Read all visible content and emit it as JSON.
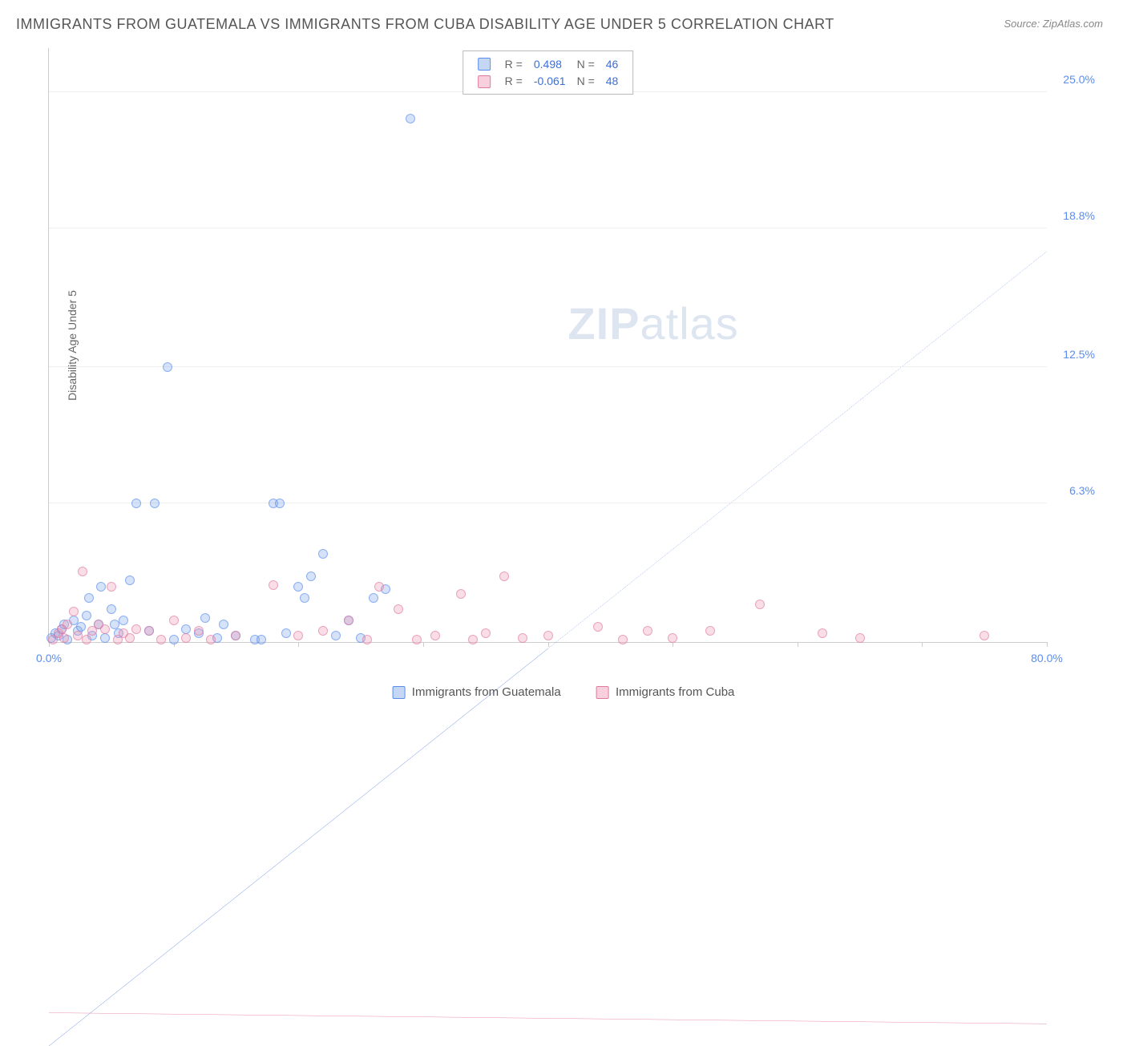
{
  "title": "IMMIGRANTS FROM GUATEMALA VS IMMIGRANTS FROM CUBA DISABILITY AGE UNDER 5 CORRELATION CHART",
  "source_label": "Source: ZipAtlas.com",
  "ylabel": "Disability Age Under 5",
  "watermark_bold": "ZIP",
  "watermark_light": "atlas",
  "chart": {
    "type": "scatter",
    "xlim": [
      0,
      80
    ],
    "ylim": [
      0,
      27
    ],
    "x_tick_positions": [
      0,
      10,
      20,
      30,
      40,
      50,
      60,
      70,
      80
    ],
    "y_gridlines": [
      6.3,
      12.5,
      18.8,
      25.0
    ],
    "x_axis_labels": [
      {
        "pos": 0,
        "text": "0.0%"
      },
      {
        "pos": 80,
        "text": "80.0%"
      }
    ],
    "y_axis_labels": [
      {
        "pos": 6.3,
        "text": "6.3%"
      },
      {
        "pos": 12.5,
        "text": "12.5%"
      },
      {
        "pos": 18.8,
        "text": "18.8%"
      },
      {
        "pos": 25.0,
        "text": "25.0%"
      }
    ],
    "background_color": "#ffffff",
    "grid_color": "#eeeeee",
    "axis_color": "#cccccc",
    "label_color": "#5b8def",
    "series": [
      {
        "name": "Immigrants from Guatemala",
        "color_fill": "rgba(124,165,230,0.45)",
        "color_stroke": "#5b8def",
        "trend_color": "#2a5bd7",
        "R": "0.498",
        "N": "46",
        "trend_line": {
          "x1": 0,
          "y1": 0,
          "x2": 80,
          "y2": 21.5
        },
        "trend_solid_until_x": 40,
        "points": [
          [
            0.2,
            0.2
          ],
          [
            0.5,
            0.4
          ],
          [
            0.8,
            0.3
          ],
          [
            1.0,
            0.6
          ],
          [
            1.2,
            0.8
          ],
          [
            1.5,
            0.1
          ],
          [
            2.0,
            1.0
          ],
          [
            2.3,
            0.5
          ],
          [
            2.6,
            0.7
          ],
          [
            3.0,
            1.2
          ],
          [
            3.2,
            2.0
          ],
          [
            3.5,
            0.3
          ],
          [
            4.0,
            0.8
          ],
          [
            4.2,
            2.5
          ],
          [
            4.5,
            0.2
          ],
          [
            5.0,
            1.5
          ],
          [
            5.3,
            0.8
          ],
          [
            5.6,
            0.4
          ],
          [
            6.0,
            1.0
          ],
          [
            6.5,
            2.8
          ],
          [
            7.0,
            6.3
          ],
          [
            8.5,
            6.3
          ],
          [
            9.5,
            12.5
          ],
          [
            10.0,
            0.1
          ],
          [
            11.0,
            0.6
          ],
          [
            12.0,
            0.4
          ],
          [
            13.5,
            0.2
          ],
          [
            15.0,
            0.3
          ],
          [
            16.5,
            0.1
          ],
          [
            18.0,
            6.3
          ],
          [
            18.5,
            6.3
          ],
          [
            19.0,
            0.4
          ],
          [
            20.0,
            2.5
          ],
          [
            20.5,
            2.0
          ],
          [
            21.0,
            3.0
          ],
          [
            22.0,
            4.0
          ],
          [
            23.0,
            0.3
          ],
          [
            25.0,
            0.2
          ],
          [
            27.0,
            2.4
          ],
          [
            29.0,
            23.8
          ],
          [
            12.5,
            1.1
          ],
          [
            14.0,
            0.8
          ],
          [
            17.0,
            0.1
          ],
          [
            24.0,
            1.0
          ],
          [
            26.0,
            2.0
          ],
          [
            8.0,
            0.5
          ]
        ]
      },
      {
        "name": "Immigrants from Cuba",
        "color_fill": "rgba(240,150,180,0.45)",
        "color_stroke": "#e07ba0",
        "trend_color": "#e06088",
        "R": "-0.061",
        "N": "48",
        "trend_line": {
          "x1": 0,
          "y1": 0.9,
          "x2": 80,
          "y2": 0.6
        },
        "trend_solid_until_x": 80,
        "points": [
          [
            0.3,
            0.1
          ],
          [
            0.8,
            0.4
          ],
          [
            1.0,
            0.6
          ],
          [
            1.2,
            0.2
          ],
          [
            1.5,
            0.8
          ],
          [
            2.0,
            1.4
          ],
          [
            2.3,
            0.3
          ],
          [
            2.7,
            3.2
          ],
          [
            3.0,
            0.1
          ],
          [
            3.5,
            0.5
          ],
          [
            4.0,
            0.8
          ],
          [
            4.5,
            0.6
          ],
          [
            5.0,
            2.5
          ],
          [
            5.5,
            0.1
          ],
          [
            6.0,
            0.4
          ],
          [
            6.5,
            0.2
          ],
          [
            7.0,
            0.6
          ],
          [
            8.0,
            0.5
          ],
          [
            9.0,
            0.1
          ],
          [
            10.0,
            1.0
          ],
          [
            11.0,
            0.2
          ],
          [
            12.0,
            0.5
          ],
          [
            13.0,
            0.1
          ],
          [
            15.0,
            0.3
          ],
          [
            18.0,
            2.6
          ],
          [
            20.0,
            0.3
          ],
          [
            22.0,
            0.5
          ],
          [
            24.0,
            1.0
          ],
          [
            25.5,
            0.1
          ],
          [
            26.5,
            2.5
          ],
          [
            28.0,
            1.5
          ],
          [
            29.5,
            0.1
          ],
          [
            31.0,
            0.3
          ],
          [
            33.0,
            2.2
          ],
          [
            34.0,
            0.1
          ],
          [
            35.0,
            0.4
          ],
          [
            36.5,
            3.0
          ],
          [
            38.0,
            0.2
          ],
          [
            40.0,
            0.3
          ],
          [
            44.0,
            0.7
          ],
          [
            46.0,
            0.1
          ],
          [
            48.0,
            0.5
          ],
          [
            50.0,
            0.2
          ],
          [
            53.0,
            0.5
          ],
          [
            57.0,
            1.7
          ],
          [
            62.0,
            0.4
          ],
          [
            65.0,
            0.2
          ],
          [
            75.0,
            0.3
          ]
        ]
      }
    ]
  },
  "legend_top": {
    "r_label": "R",
    "n_label": "N",
    "eq": "="
  },
  "legend_bottom": {
    "series_a": "Immigrants from Guatemala",
    "series_b": "Immigrants from Cuba"
  }
}
